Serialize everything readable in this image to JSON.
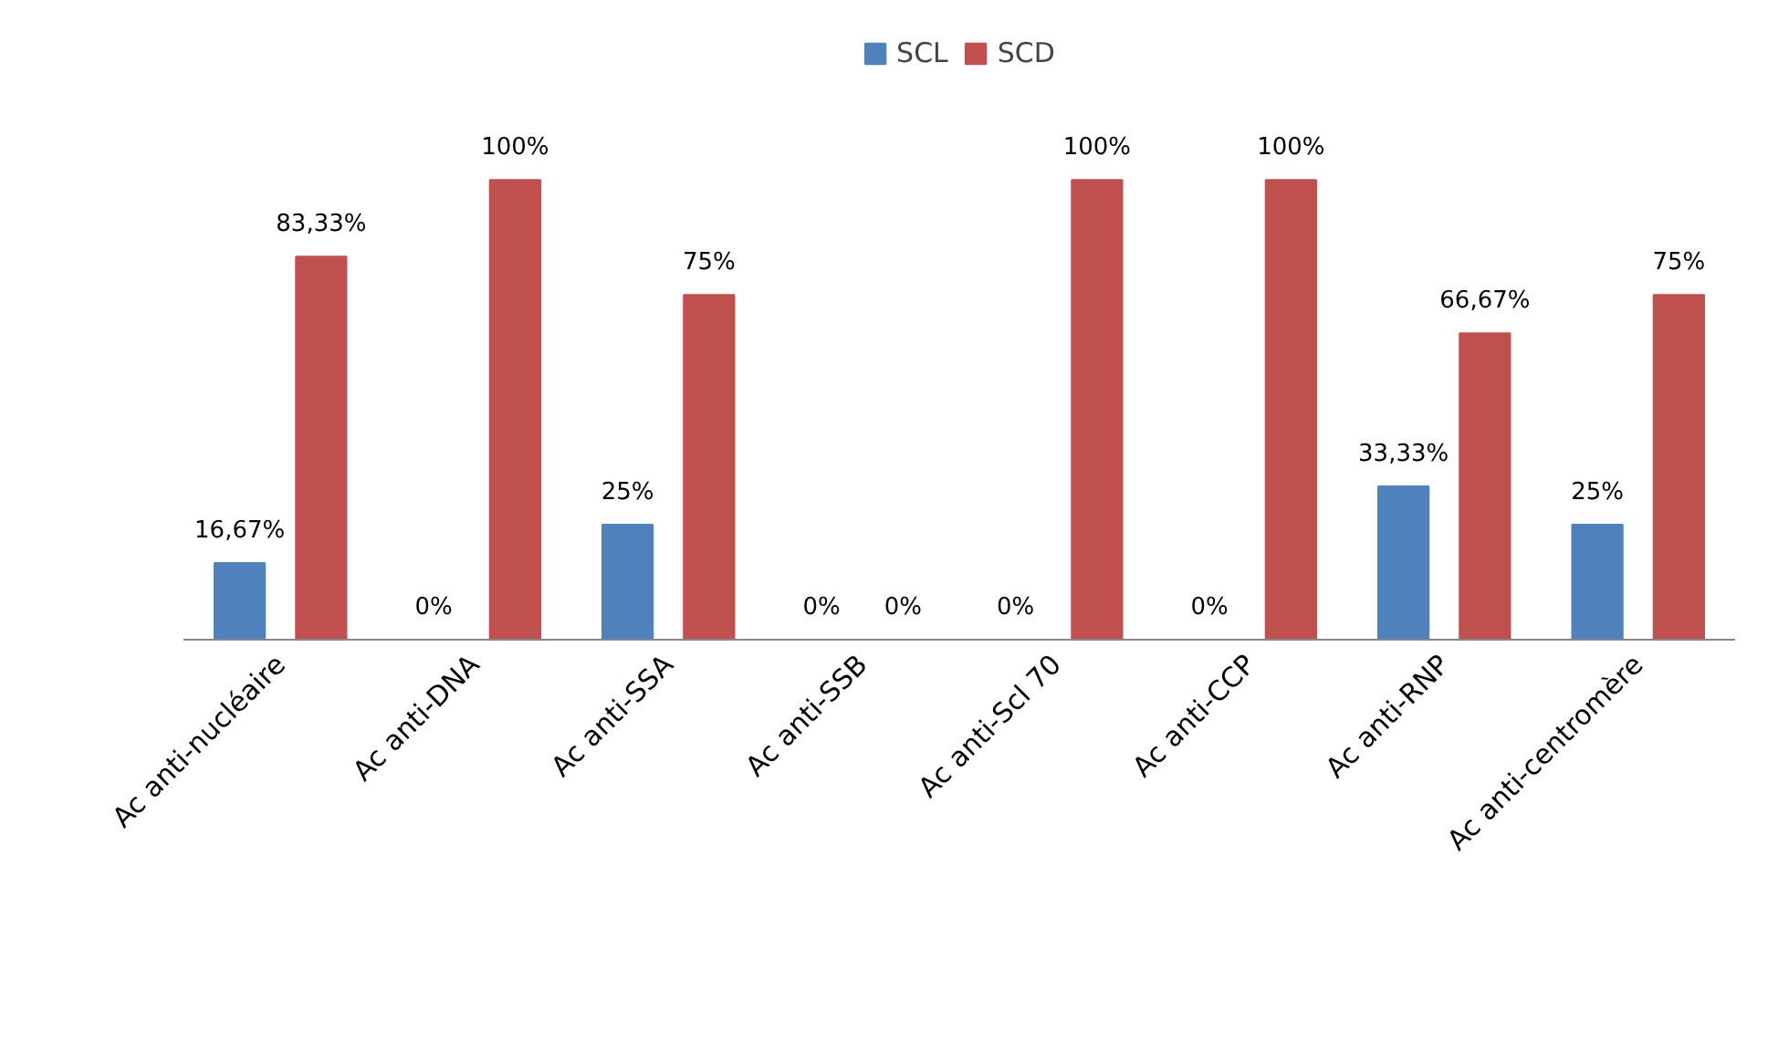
{
  "chart_data": {
    "type": "bar",
    "categories": [
      "Ac anti-nucléaire",
      "Ac anti-DNA",
      "Ac anti-SSA",
      "Ac anti-SSB",
      "Ac anti-Scl 70",
      "Ac anti-CCP",
      "Ac anti-RNP",
      "Ac anti-centromère"
    ],
    "series": [
      {
        "name": "SCL",
        "color": "#4f81bd",
        "values": [
          16.67,
          0,
          25,
          0,
          0,
          0,
          33.33,
          25
        ],
        "value_labels": [
          "16,67%",
          "0%",
          "25%",
          "0%",
          "0%",
          "0%",
          "33,33%",
          "25%"
        ]
      },
      {
        "name": "SCD",
        "color": "#c0504d",
        "values": [
          83.33,
          100,
          75,
          0,
          100,
          100,
          66.67,
          75
        ],
        "value_labels": [
          "83,33%",
          "100%",
          "75%",
          "0%",
          "100%",
          "100%",
          "66,67%",
          "75%"
        ]
      }
    ],
    "legend": "top"
  }
}
